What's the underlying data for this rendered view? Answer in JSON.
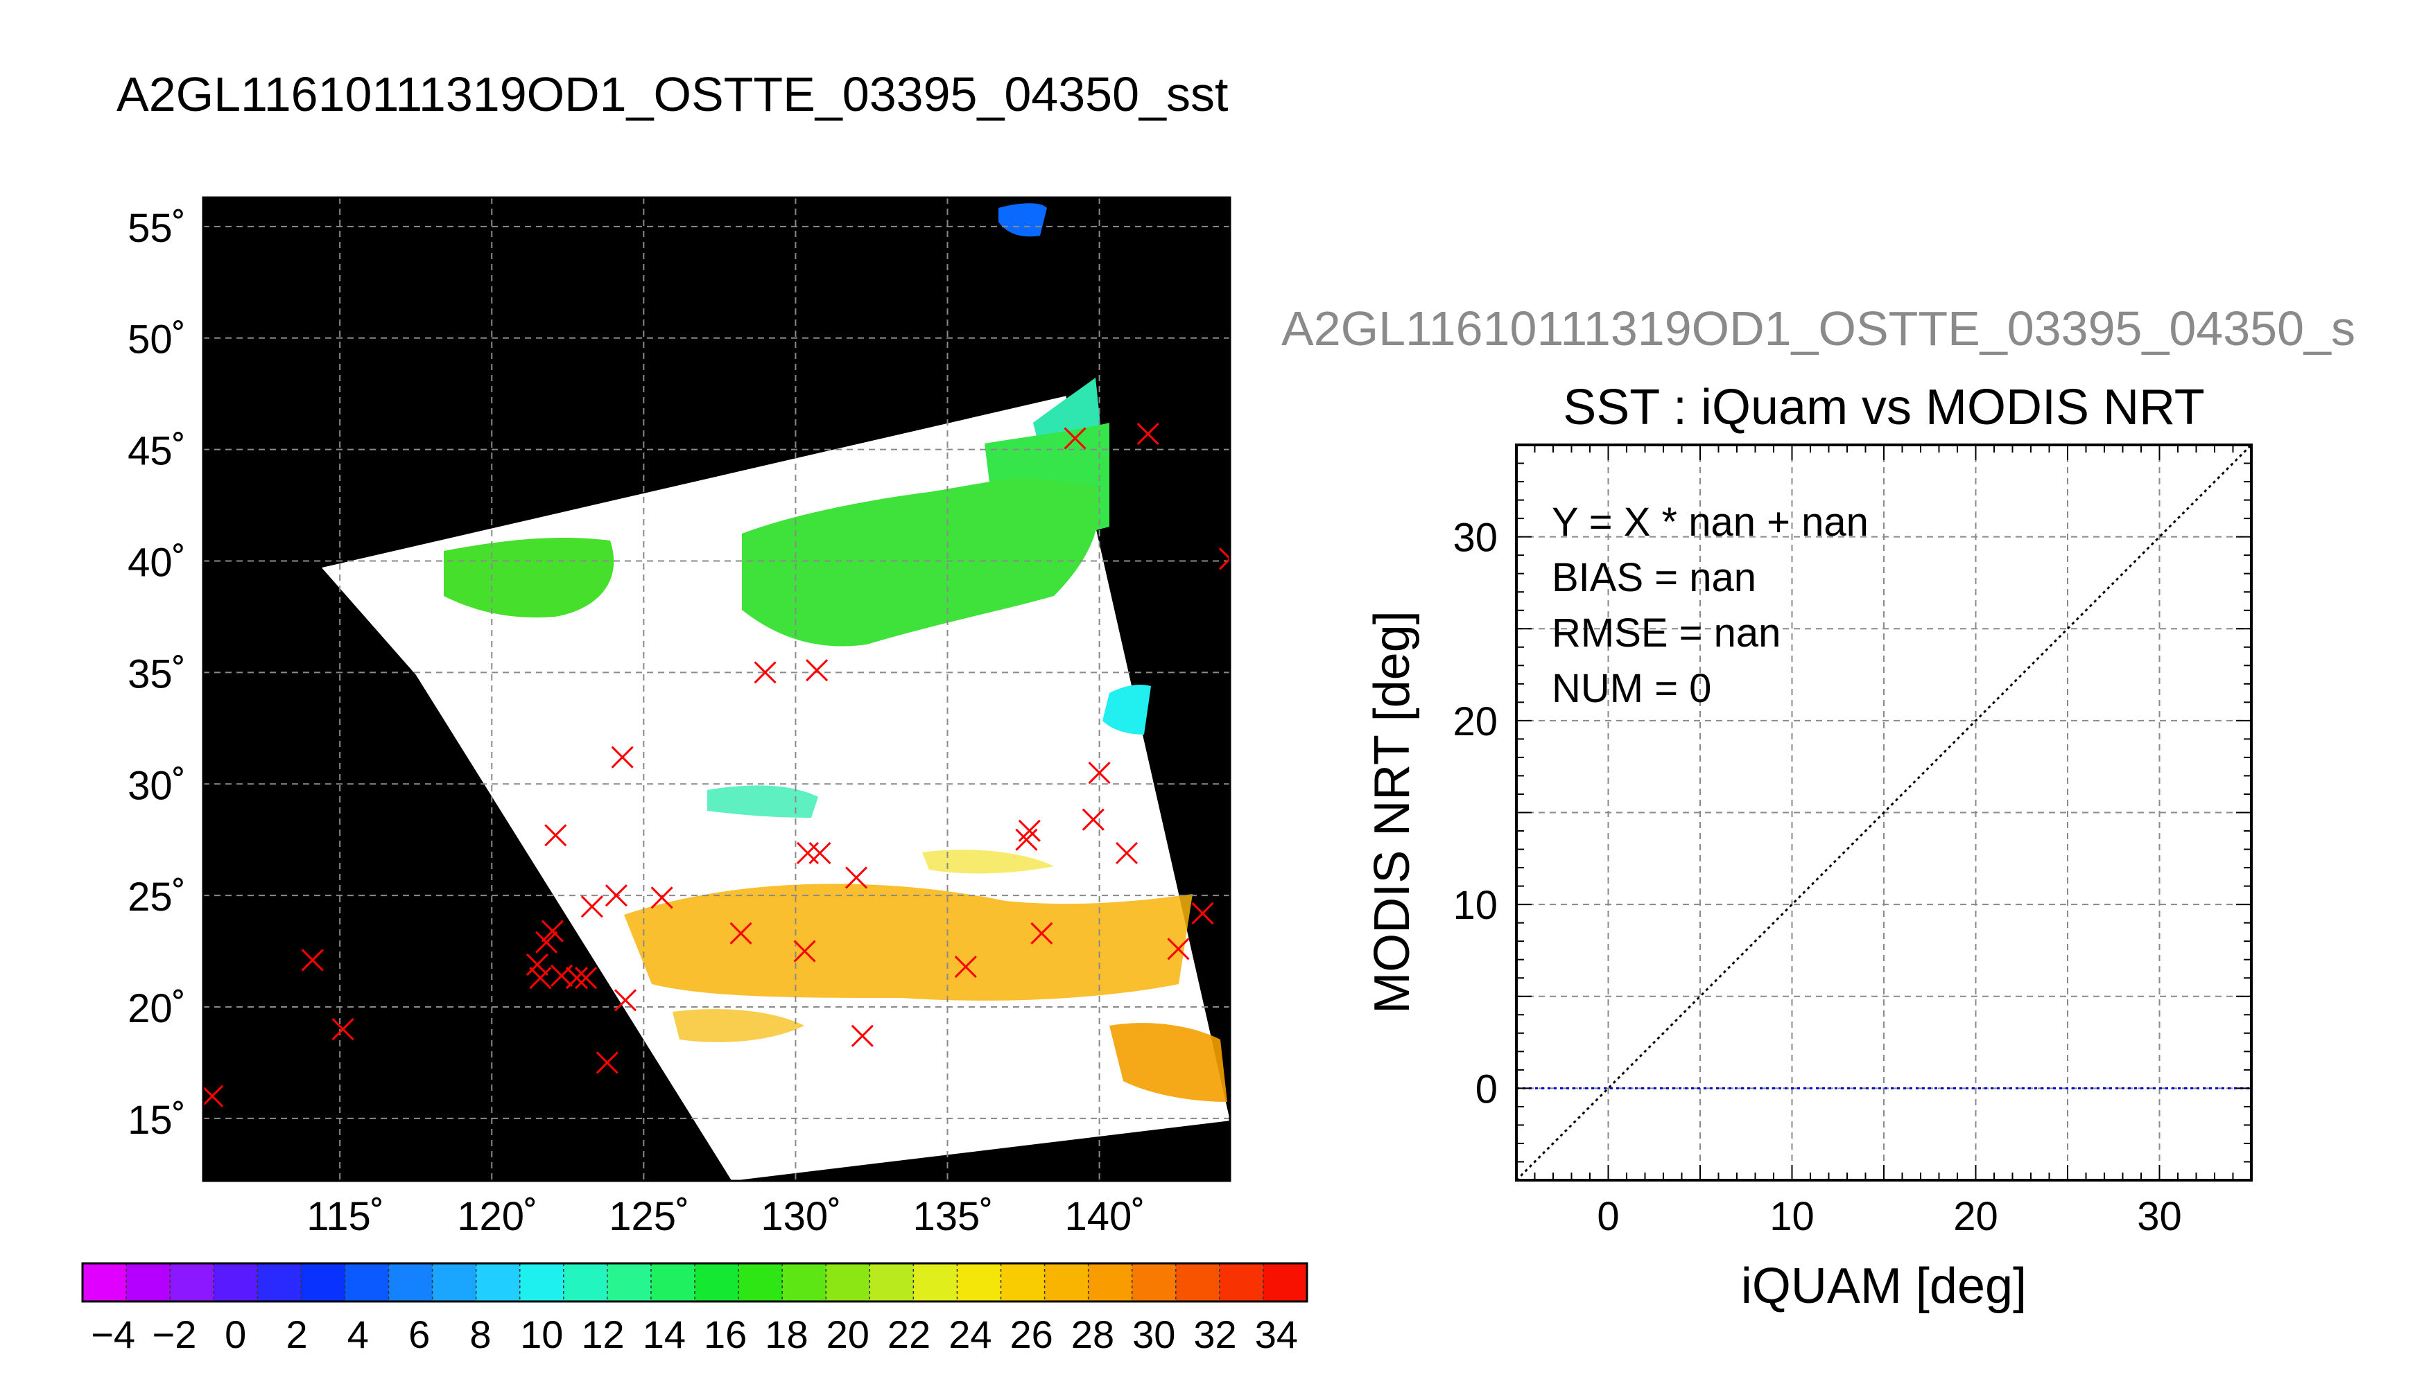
{
  "page_title": "A2GL11610111319OD1_OSTTE_03395_04350_sst",
  "chart_data": [
    {
      "type": "heatmap",
      "description_role": "sst-map",
      "x_ticks": [
        115,
        120,
        125,
        130,
        135,
        140
      ],
      "x_tick_labels": [
        "115˚",
        "120˚",
        "125˚",
        "130˚",
        "135˚",
        "140˚"
      ],
      "y_ticks": [
        55,
        50,
        45,
        40,
        35,
        30,
        25,
        20,
        15
      ],
      "y_tick_labels": [
        "55˚",
        "50˚",
        "45˚",
        "40˚",
        "35˚",
        "30˚",
        "25˚",
        "20˚",
        "15˚"
      ],
      "xlim": [
        110.5,
        144.3
      ],
      "ylim": [
        12.2,
        56.3
      ],
      "grid": true,
      "swath_corners_lonlat": [
        [
          114.4,
          39.7
        ],
        [
          138.9,
          47.4
        ],
        [
          144.3,
          14.9
        ],
        [
          127.9,
          12.2
        ],
        [
          117.5,
          34.9
        ],
        [
          114.4,
          39.7
        ]
      ],
      "markers": {
        "symbol": "x",
        "color": "#ff0000",
        "points": [
          [
            110.8,
            16.0
          ],
          [
            114.1,
            22.1
          ],
          [
            115.1,
            19.0
          ],
          [
            121.5,
            21.9
          ],
          [
            121.8,
            22.9
          ],
          [
            122.0,
            23.4
          ],
          [
            121.6,
            21.3
          ],
          [
            122.3,
            21.4
          ],
          [
            122.1,
            27.7
          ],
          [
            122.8,
            21.3
          ],
          [
            123.1,
            21.3
          ],
          [
            123.3,
            24.5
          ],
          [
            123.8,
            17.5
          ],
          [
            124.1,
            25.0
          ],
          [
            124.4,
            20.3
          ],
          [
            124.3,
            31.2
          ],
          [
            125.6,
            24.9
          ],
          [
            128.2,
            23.3
          ],
          [
            129.0,
            35.0
          ],
          [
            130.3,
            22.5
          ],
          [
            130.4,
            26.9
          ],
          [
            130.8,
            26.9
          ],
          [
            130.7,
            35.1
          ],
          [
            132.0,
            25.8
          ],
          [
            132.2,
            18.7
          ],
          [
            135.6,
            21.8
          ],
          [
            137.7,
            27.9
          ],
          [
            137.6,
            27.5
          ],
          [
            138.1,
            23.3
          ],
          [
            139.2,
            45.5
          ],
          [
            139.8,
            28.4
          ],
          [
            140.0,
            30.5
          ],
          [
            140.9,
            26.9
          ],
          [
            141.6,
            45.7
          ],
          [
            142.6,
            22.6
          ],
          [
            143.4,
            24.2
          ],
          [
            144.3,
            40.1
          ]
        ]
      }
    },
    {
      "type": "scatter",
      "description_role": "scatter-comparison",
      "suptitle": "A2GL11610111319OD1_OSTTE_03395_04350_s",
      "title": "SST : iQuam vs MODIS NRT",
      "xlabel": "iQUAM [deg]",
      "ylabel": "MODIS NRT [deg]",
      "xlim": [
        -5,
        35
      ],
      "ylim": [
        -5,
        35
      ],
      "x_ticks": [
        0,
        10,
        20,
        30
      ],
      "y_ticks": [
        0,
        10,
        20,
        30
      ],
      "grid": true,
      "stats": [
        "Y = X * nan + nan",
        "BIAS = nan",
        "RMSE = nan",
        "NUM = 0"
      ],
      "reference_lines": [
        {
          "kind": "identity",
          "style": "dotted",
          "color": "#000000",
          "x": [
            -5,
            35
          ],
          "y": [
            -5,
            35
          ]
        },
        {
          "kind": "fit",
          "style": "dotted",
          "color": "#0000cc",
          "x": [
            -5,
            35
          ],
          "y": [
            0,
            0
          ]
        }
      ],
      "points": []
    },
    {
      "type": "colorbar",
      "description_role": "sst-colorbar",
      "range": [
        -5,
        35
      ],
      "tick_values": [
        -4,
        -2,
        0,
        2,
        4,
        6,
        8,
        10,
        12,
        14,
        16,
        18,
        20,
        22,
        24,
        26,
        28,
        30,
        32,
        34
      ],
      "tick_labels": [
        "−4",
        "−2",
        "0",
        "2",
        "4",
        "6",
        "8",
        "10",
        "12",
        "14",
        "16",
        "18",
        "20",
        "22",
        "24",
        "26",
        "28",
        "30",
        "32",
        "34"
      ],
      "colors": [
        "#e000ff",
        "#b400ff",
        "#8c18ff",
        "#5a1aff",
        "#2a2aff",
        "#0a32ff",
        "#0a5aff",
        "#1482ff",
        "#1aa6ff",
        "#20cfff",
        "#1ef0f0",
        "#22f5c0",
        "#26f590",
        "#1ef060",
        "#14e830",
        "#2ee614",
        "#5ee614",
        "#8ce614",
        "#b8ea1e",
        "#e0ee1c",
        "#f5e60a",
        "#f8cc00",
        "#f8b400",
        "#f89c00",
        "#f87a00",
        "#f85400",
        "#f83200",
        "#f81000"
      ]
    }
  ]
}
